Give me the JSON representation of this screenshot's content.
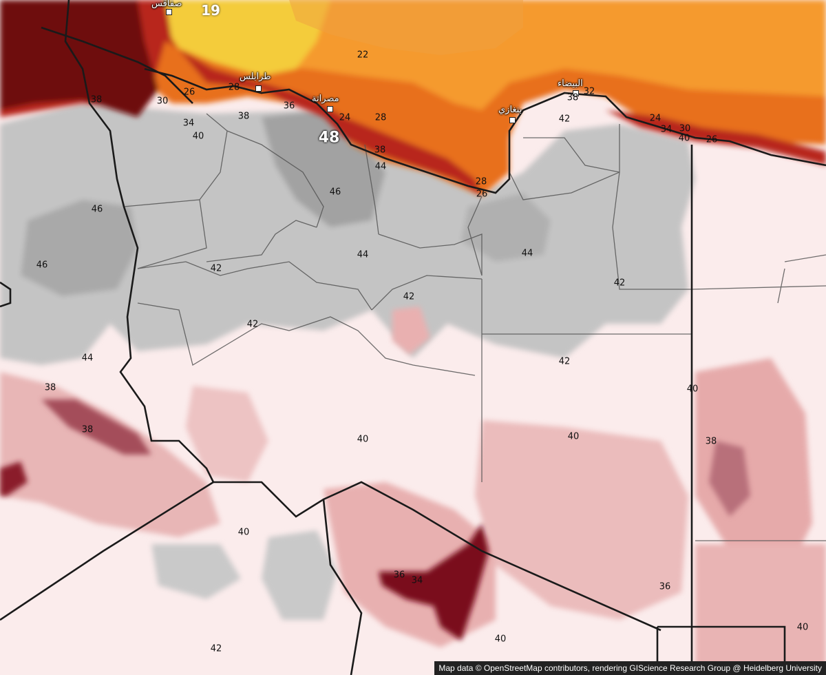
{
  "map": {
    "colors": {
      "hot_dark": "#6e0d0d",
      "hot_red": "#b8261b",
      "hot_orange": "#e8701f",
      "warm_orange": "#f59a2e",
      "yellow": "#f4cc3a",
      "grey_dark": "#8f8f8f",
      "grey": "#b9b9b9",
      "grey_light": "#d8d8d8",
      "pink_pale": "#fbecec",
      "pink": "#f1c7c7",
      "pink_mid": "#e2a0a0",
      "maroon": "#8a1c2a",
      "border": "#1a1a1a",
      "admin": "#555555"
    },
    "cities": [
      {
        "name": "صفاقس"
      },
      {
        "name": "طرابلس"
      },
      {
        "name": "مصراتة"
      },
      {
        "name": "البيضاء"
      },
      {
        "name": "بنغازي"
      }
    ],
    "temperature_labels": [
      "19",
      "22",
      "26",
      "28",
      "30",
      "38",
      "32",
      "34",
      "38",
      "40",
      "36",
      "24",
      "28",
      "24",
      "26",
      "38",
      "34",
      "30",
      "28",
      "42",
      "40",
      "26",
      "48",
      "38",
      "44",
      "46",
      "46",
      "46",
      "44",
      "44",
      "42",
      "42",
      "42",
      "42",
      "42",
      "44",
      "38",
      "38",
      "40",
      "40",
      "40",
      "38",
      "40",
      "36",
      "34",
      "40",
      "36",
      "40",
      "42",
      "40"
    ]
  },
  "attribution": "Map data © OpenStreetMap contributors, rendering GIScience Research Group @ Heidelberg University"
}
